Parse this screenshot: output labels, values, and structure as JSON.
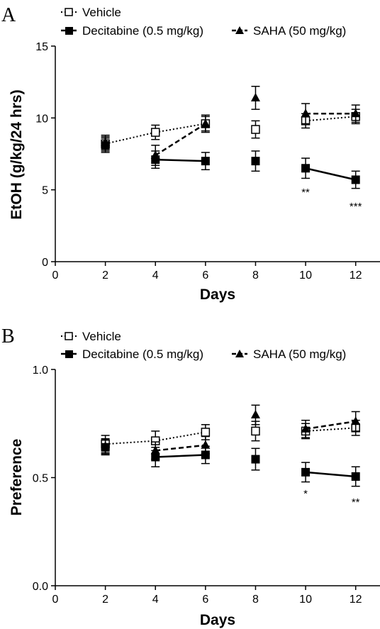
{
  "chart_data": [
    {
      "type": "line",
      "panel_label": "A",
      "xlabel": "Days",
      "ylabel": "EtOH (g/kg/24 hrs)",
      "xlim": [
        0,
        13
      ],
      "ylim": [
        0,
        15
      ],
      "xticks": [
        "0",
        "2",
        "4",
        "6",
        "8",
        "10",
        "12"
      ],
      "xtick_values": [
        0,
        2,
        4,
        6,
        8,
        10,
        12
      ],
      "yticks": [
        "0",
        "5",
        "10",
        "15"
      ],
      "ytick_values": [
        0,
        5,
        10,
        15
      ],
      "series": [
        {
          "name": "Vehicle",
          "style": "dotted",
          "marker": "open-square",
          "x": [
            2,
            4,
            6,
            8,
            10,
            12
          ],
          "y": [
            8.2,
            9.0,
            9.6,
            9.2,
            9.8,
            10.1
          ],
          "err": [
            0.5,
            0.5,
            0.5,
            0.6,
            0.5,
            0.5
          ],
          "connected": [
            [
              0,
              1
            ],
            [
              1,
              2
            ],
            [
              4,
              5
            ]
          ]
        },
        {
          "name": "Decitabine (0.5 mg/kg)",
          "style": "solid",
          "marker": "filled-square",
          "x": [
            2,
            4,
            6,
            8,
            10,
            12
          ],
          "y": [
            8.1,
            7.1,
            7.0,
            7.0,
            6.5,
            5.7
          ],
          "err": [
            0.5,
            0.6,
            0.6,
            0.7,
            0.7,
            0.6
          ],
          "connected": [
            [
              1,
              2
            ],
            [
              4,
              5
            ]
          ]
        },
        {
          "name": "SAHA (50 mg/kg)",
          "style": "dashed",
          "marker": "filled-triangle",
          "x": [
            2,
            4,
            6,
            8,
            10,
            12
          ],
          "y": [
            8.3,
            7.4,
            9.6,
            11.4,
            10.3,
            10.3
          ],
          "err": [
            0.5,
            0.7,
            0.6,
            0.8,
            0.7,
            0.6
          ],
          "connected": [
            [
              1,
              2
            ],
            [
              4,
              5
            ]
          ]
        }
      ],
      "annotations": [
        {
          "x": 10,
          "y": 4.6,
          "text": "**"
        },
        {
          "x": 12,
          "y": 3.6,
          "text": "***"
        }
      ],
      "legend": {
        "placement": "top",
        "entries": [
          "Vehicle",
          "Decitabine (0.5 mg/kg)",
          "SAHA (50 mg/kg)"
        ]
      },
      "grid": false
    },
    {
      "type": "line",
      "panel_label": "B",
      "xlabel": "Days",
      "ylabel": "Preference",
      "xlim": [
        0,
        13
      ],
      "ylim": [
        0,
        1
      ],
      "xticks": [
        "0",
        "2",
        "4",
        "6",
        "8",
        "10",
        "12"
      ],
      "xtick_values": [
        0,
        2,
        4,
        6,
        8,
        10,
        12
      ],
      "yticks": [
        "0.0",
        "0.5",
        "1.0"
      ],
      "ytick_values": [
        0,
        0.5,
        1.0
      ],
      "series": [
        {
          "name": "Vehicle",
          "style": "dotted",
          "marker": "open-square",
          "x": [
            2,
            4,
            6,
            8,
            10,
            12
          ],
          "y": [
            0.655,
            0.67,
            0.71,
            0.715,
            0.715,
            0.73
          ],
          "err": [
            0.04,
            0.045,
            0.035,
            0.045,
            0.035,
            0.035
          ],
          "connected": [
            [
              0,
              1
            ],
            [
              1,
              2
            ],
            [
              4,
              5
            ]
          ]
        },
        {
          "name": "Decitabine (0.5 mg/kg)",
          "style": "solid",
          "marker": "filled-square",
          "x": [
            2,
            4,
            6,
            8,
            10,
            12
          ],
          "y": [
            0.64,
            0.595,
            0.605,
            0.585,
            0.525,
            0.505
          ],
          "err": [
            0.035,
            0.045,
            0.04,
            0.05,
            0.045,
            0.045
          ],
          "connected": [
            [
              1,
              2
            ],
            [
              4,
              5
            ]
          ]
        },
        {
          "name": "SAHA (50 mg/kg)",
          "style": "dashed",
          "marker": "filled-triangle",
          "x": [
            2,
            4,
            6,
            8,
            10,
            12
          ],
          "y": [
            0.645,
            0.625,
            0.65,
            0.79,
            0.725,
            0.76
          ],
          "err": [
            0.035,
            0.04,
            0.04,
            0.045,
            0.04,
            0.045
          ],
          "connected": [
            [
              1,
              2
            ],
            [
              4,
              5
            ]
          ]
        }
      ],
      "annotations": [
        {
          "x": 10,
          "y": 0.41,
          "text": "*"
        },
        {
          "x": 12,
          "y": 0.37,
          "text": "**"
        }
      ],
      "legend": {
        "placement": "top",
        "entries": [
          "Vehicle",
          "Decitabine (0.5 mg/kg)",
          "SAHA (50 mg/kg)"
        ]
      },
      "grid": false
    }
  ]
}
